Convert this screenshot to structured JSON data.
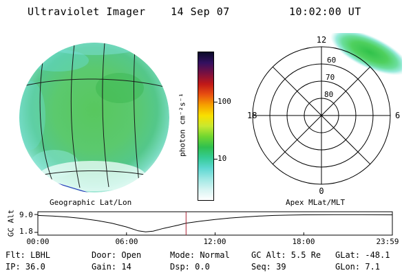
{
  "header": {
    "title": "Ultraviolet Imager",
    "date": "14 Sep 07",
    "time": "10:02:00 UT"
  },
  "disk_panel": {
    "caption": "Geographic Lat/Lon"
  },
  "colorbar": {
    "label": "photon cm⁻²s⁻¹",
    "tick_top": "100",
    "tick_bottom": "10",
    "stops": [
      "#0a0a28",
      "#331060",
      "#7a1040",
      "#c01818",
      "#e85010",
      "#f6a000",
      "#f8e000",
      "#c8e830",
      "#6fd630",
      "#2fc050",
      "#35cc96",
      "#5fd8d2",
      "#9fe8e4",
      "#d6f4f2",
      "#ffffff"
    ]
  },
  "polar_panel": {
    "caption": "Apex MLat/MLT",
    "hour_top": "12",
    "hour_left": "18",
    "hour_right": "6",
    "hour_bottom": "0",
    "ring_outer": "60",
    "ring_mid": "70",
    "ring_inner": "80"
  },
  "strip": {
    "ylabel": "GC Alt",
    "ytick_top": "9.0",
    "ytick_bottom": "1.8",
    "xticks": [
      "00:00",
      "06:00",
      "12:00",
      "18:00",
      "23:59"
    ]
  },
  "status": {
    "row1": [
      "Flt: LBHL",
      "Door: Open",
      "Mode: Normal",
      "GC Alt: 5.5 Re",
      "GLat: -48.1"
    ],
    "row2": [
      "IP: 36.0",
      "Gain: 14",
      "Dsp: 0.0",
      "Seq: 39",
      "GLon: 7.1"
    ]
  },
  "chart_data": [
    {
      "type": "heatmap",
      "title": "Geographic Lat/Lon",
      "description": "Ultraviolet image of the sunlit Earth disk with geographic latitude/longitude grid overlaid; fairly uniform airglow around 10-30 photon cm-2 s-1 (green) fading to below 10 (cyan/white) at the limb",
      "colorbar": {
        "label": "photon cm⁻²s⁻¹",
        "scale": "log",
        "ticks": [
          10,
          100
        ]
      }
    },
    {
      "type": "heatmap",
      "title": "Apex MLat/MLT",
      "rings_mlat": [
        80,
        70,
        60,
        50
      ],
      "hour_marks_mlt": [
        12,
        18,
        6,
        0
      ],
      "feature": "emission patch spanning roughly 50-65 MLat near 13-16 MLT (upper right), green ~20-40 photon cm-2 s-1 with cyan fringe"
    },
    {
      "type": "line",
      "title": "GC Alt vs UT",
      "ylabel": "GC Alt",
      "yticks": [
        9.0,
        1.8
      ],
      "ylim": [
        1.8,
        9.0
      ],
      "xticks": [
        "00:00",
        "06:00",
        "12:00",
        "18:00",
        "23:59"
      ],
      "marker_time_hours": 10.033,
      "series": [
        {
          "name": "GC Alt (Re)",
          "points": [
            [
              0,
              8.6
            ],
            [
              1,
              8.4
            ],
            [
              2,
              8.0
            ],
            [
              3,
              7.4
            ],
            [
              4,
              6.6
            ],
            [
              5,
              5.5
            ],
            [
              6,
              4.0
            ],
            [
              6.8,
              2.4
            ],
            [
              7.3,
              2.0
            ],
            [
              7.8,
              2.3
            ],
            [
              8.5,
              3.4
            ],
            [
              9.5,
              4.7
            ],
            [
              10.03,
              5.5
            ],
            [
              11,
              6.3
            ],
            [
              12,
              7.0
            ],
            [
              13,
              7.6
            ],
            [
              14,
              8.0
            ],
            [
              15,
              8.35
            ],
            [
              16,
              8.6
            ],
            [
              17,
              8.75
            ],
            [
              18,
              8.85
            ],
            [
              19,
              8.9
            ],
            [
              20,
              8.95
            ],
            [
              21,
              8.95
            ],
            [
              22,
              8.95
            ],
            [
              23,
              8.9
            ],
            [
              24,
              8.85
            ]
          ]
        }
      ]
    }
  ]
}
